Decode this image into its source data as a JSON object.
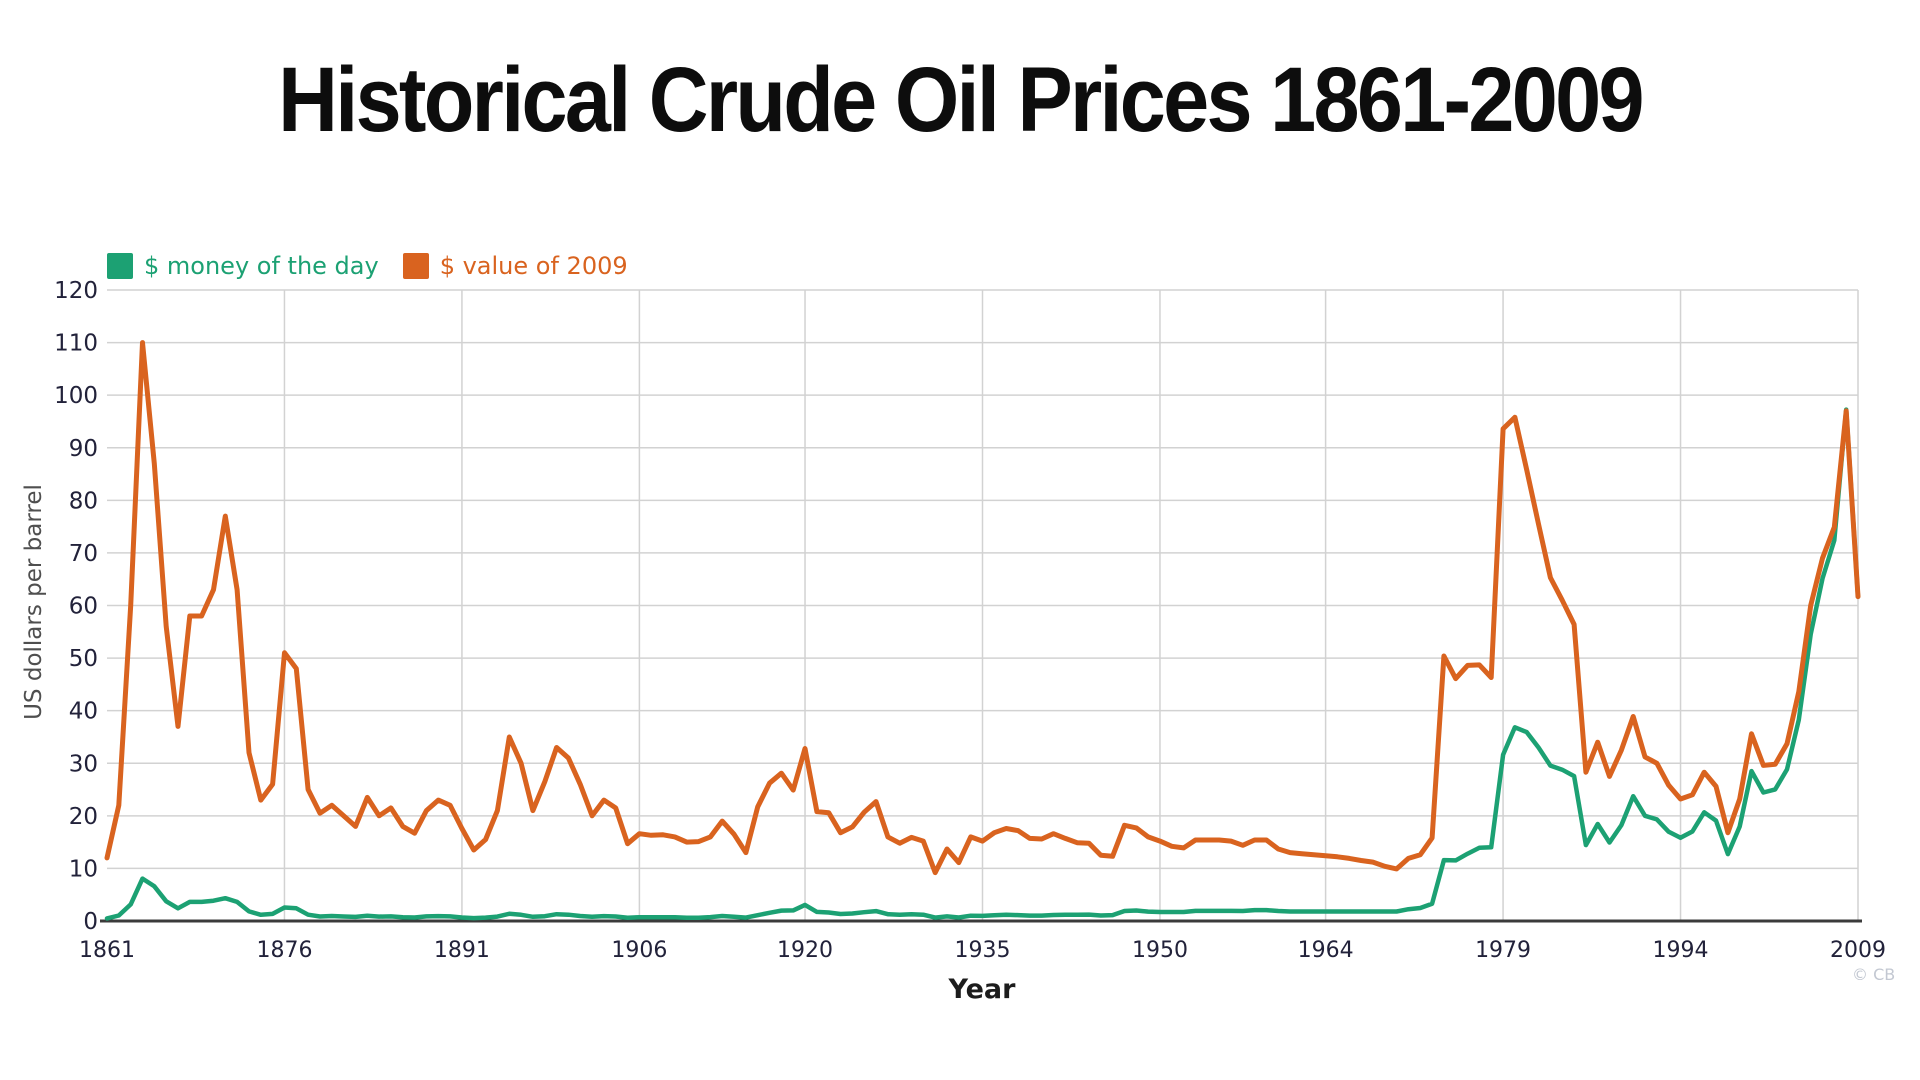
{
  "page": {
    "watermark": "© CB"
  },
  "legend": {
    "items": [
      {
        "label": "$ money of the day",
        "color": "#1CA173"
      },
      {
        "label": "$ value of 2009",
        "color": "#D9631F"
      }
    ]
  },
  "axis_colors": {
    "grid": "#d2d2d2",
    "axis_line": "#3b3b3b",
    "tick_label": "#22223a"
  },
  "chart_data": {
    "type": "line",
    "title": "Historical Crude Oil Prices 1861-2009",
    "xlabel": "Year",
    "ylabel": "US dollars per barrel",
    "x_start": 1861,
    "x_end": 2009,
    "x_step": 1,
    "x_ticks": [
      1861,
      1876,
      1891,
      1906,
      1920,
      1935,
      1950,
      1964,
      1979,
      1994,
      2009
    ],
    "y_ticks": [
      0,
      10,
      20,
      30,
      40,
      50,
      60,
      70,
      80,
      90,
      100,
      110,
      120
    ],
    "ylim": [
      0,
      120
    ],
    "grid": true,
    "legend_position": "top-left",
    "series": [
      {
        "name": "$ money of the day",
        "color": "#1CA173",
        "values": [
          0.49,
          1.05,
          3.15,
          8.06,
          6.59,
          3.74,
          2.41,
          3.63,
          3.64,
          3.86,
          4.34,
          3.64,
          1.83,
          1.17,
          1.35,
          2.56,
          2.42,
          1.19,
          0.86,
          0.95,
          0.86,
          0.78,
          1.0,
          0.84,
          0.88,
          0.71,
          0.67,
          0.88,
          0.94,
          0.87,
          0.67,
          0.56,
          0.64,
          0.84,
          1.36,
          1.18,
          0.79,
          0.91,
          1.29,
          1.19,
          0.96,
          0.8,
          0.94,
          0.86,
          0.62,
          0.73,
          0.72,
          0.72,
          0.7,
          0.61,
          0.61,
          0.74,
          0.95,
          0.81,
          0.64,
          1.1,
          1.56,
          1.98,
          2.01,
          3.07,
          1.73,
          1.61,
          1.34,
          1.43,
          1.68,
          1.88,
          1.3,
          1.17,
          1.27,
          1.19,
          0.65,
          0.87,
          0.67,
          1.0,
          0.97,
          1.09,
          1.18,
          1.13,
          1.02,
          1.02,
          1.14,
          1.19,
          1.2,
          1.21,
          1.05,
          1.12,
          1.9,
          1.99,
          1.78,
          1.71,
          1.71,
          1.71,
          1.93,
          1.93,
          1.93,
          1.93,
          1.9,
          2.08,
          2.08,
          1.9,
          1.8,
          1.8,
          1.8,
          1.8,
          1.8,
          1.8,
          1.8,
          1.8,
          1.8,
          1.8,
          2.24,
          2.48,
          3.29,
          11.58,
          11.53,
          12.8,
          13.92,
          14.02,
          31.61,
          36.83,
          35.93,
          32.97,
          29.55,
          28.78,
          27.56,
          14.43,
          18.44,
          14.92,
          18.23,
          23.73,
          20.0,
          19.32,
          16.97,
          15.82,
          17.02,
          20.67,
          19.09,
          12.72,
          17.97,
          28.5,
          24.44,
          25.02,
          28.83,
          38.27,
          54.52,
          65.14,
          72.39,
          97.26,
          61.67
        ]
      },
      {
        "name": "$ value of 2009",
        "color": "#D9631F",
        "values": [
          12,
          22,
          60,
          110,
          87,
          56,
          37,
          58,
          58,
          63,
          77,
          63,
          32,
          23,
          26,
          51,
          48,
          25,
          20.5,
          22,
          20,
          18,
          23.5,
          20,
          21.5,
          18,
          16.7,
          21,
          23,
          22,
          17.6,
          13.5,
          15.5,
          21,
          35,
          30,
          21,
          26.5,
          33,
          31,
          26,
          20,
          23,
          21.5,
          14.7,
          16.6,
          16.3,
          16.4,
          16,
          15,
          15.1,
          16,
          19,
          16.5,
          13,
          21.7,
          26.2,
          28.1,
          24.9,
          32.8,
          20.8,
          20.6,
          16.8,
          17.9,
          20.7,
          22.7,
          16,
          14.8,
          15.9,
          15.2,
          9.2,
          13.7,
          11.1,
          16,
          15.2,
          16.8,
          17.6,
          17.2,
          15.7,
          15.6,
          16.6,
          15.7,
          14.9,
          14.8,
          12.5,
          12.3,
          18.2,
          17.7,
          16,
          15.2,
          14.2,
          13.9,
          15.4,
          15.4,
          15.4,
          15.2,
          14.4,
          15.4,
          15.4,
          13.7,
          13,
          12.8,
          12.6,
          12.4,
          12.2,
          11.9,
          11.5,
          11.2,
          10.4,
          9.9,
          11.9,
          12.6,
          15.8,
          50.4,
          46.1,
          48.6,
          48.7,
          46.3,
          93.6,
          95.8,
          85.8,
          75.4,
          65.3,
          61,
          56.4,
          28.3,
          34,
          27.5,
          32.5,
          38.9,
          31.2,
          30,
          25.8,
          23.2,
          24,
          28.3,
          25.6,
          16.8,
          23.2,
          35.6,
          29.6,
          29.8,
          33.7,
          43.6,
          60,
          69,
          74.9,
          97,
          61.7
        ]
      }
    ]
  }
}
